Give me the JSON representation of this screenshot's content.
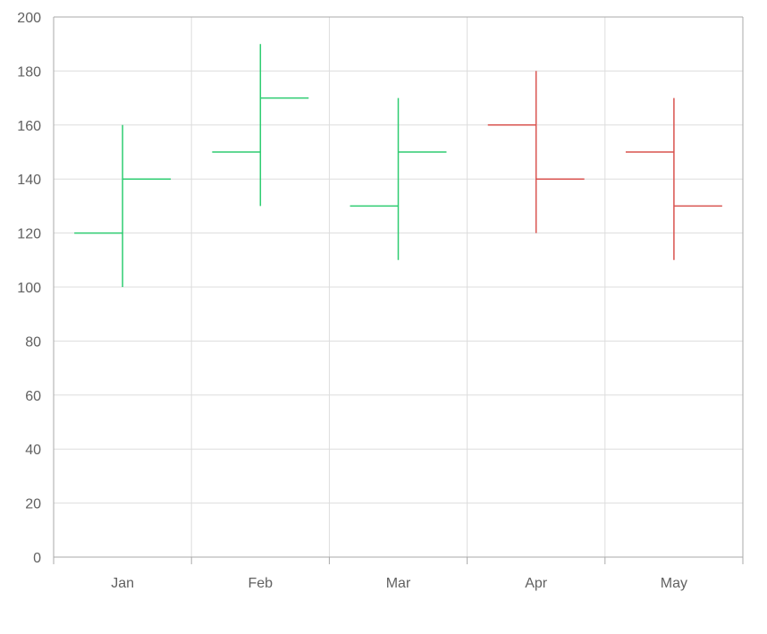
{
  "chart_data": {
    "type": "ohlc",
    "title": "",
    "xlabel": "",
    "ylabel": "",
    "categories": [
      "Jan",
      "Feb",
      "Mar",
      "Apr",
      "May"
    ],
    "ylim": [
      0,
      200
    ],
    "yticks": [
      "0",
      "20",
      "40",
      "60",
      "80",
      "100",
      "120",
      "140",
      "160",
      "180",
      "200"
    ],
    "grid": true,
    "legend": "none",
    "colors": {
      "up": "#2ecc71",
      "down": "#d9534f",
      "grid": "#dddddd",
      "axis": "#aaaaaa"
    },
    "ohlc": [
      {
        "x": "Jan",
        "open": 120,
        "high": 160,
        "low": 100,
        "close": 140
      },
      {
        "x": "Feb",
        "open": 150,
        "high": 190,
        "low": 130,
        "close": 170
      },
      {
        "x": "Mar",
        "open": 130,
        "high": 170,
        "low": 110,
        "close": 150
      },
      {
        "x": "Apr",
        "open": 160,
        "high": 180,
        "low": 120,
        "close": 140
      },
      {
        "x": "May",
        "open": 150,
        "high": 170,
        "low": 110,
        "close": 130
      }
    ]
  }
}
